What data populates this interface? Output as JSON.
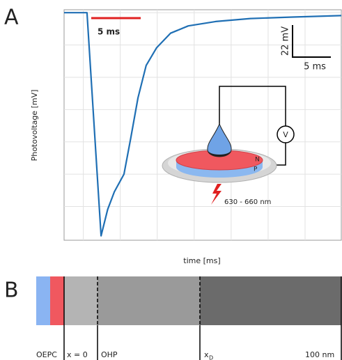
{
  "chart_data": {
    "type": "line",
    "ylabel": "Photovoltage [mV]",
    "xlabel": "time [ms]",
    "x": [
      -2.6,
      0.5,
      2.4,
      3.3,
      4.2,
      5.5,
      6.4,
      7.4,
      8.5,
      9.9,
      11.8,
      14.2,
      17.9,
      22.6,
      28.3,
      34.9
    ],
    "values": [
      0,
      0,
      -152,
      -134,
      -122,
      -110,
      -86,
      -58,
      -36,
      -24,
      -14,
      -9,
      -6,
      -4,
      -3,
      -2
    ],
    "color": "#1f6fb4",
    "xlim": [
      -2.6,
      34.9
    ],
    "xticks": [
      0,
      5,
      10,
      15,
      20,
      25,
      30
    ],
    "ylim": [
      -155,
      2
    ],
    "yticks": [
      0,
      -22,
      -44,
      -66,
      -88,
      -110,
      -132
    ],
    "grid": true
  },
  "panel_a": {
    "label": "A",
    "scale_bar_red": "5 ms",
    "scale_bar_y": "22 mV",
    "scale_bar_x": "5 ms",
    "inset": {
      "n_label": "N",
      "p_label": "P",
      "meter": "V",
      "wavelength": "630 - 660 nm"
    }
  },
  "panel_b": {
    "label": "B",
    "regions": [
      "OEPC",
      "x = 0",
      "OHP",
      "x",
      "D",
      "100 nm"
    ]
  }
}
